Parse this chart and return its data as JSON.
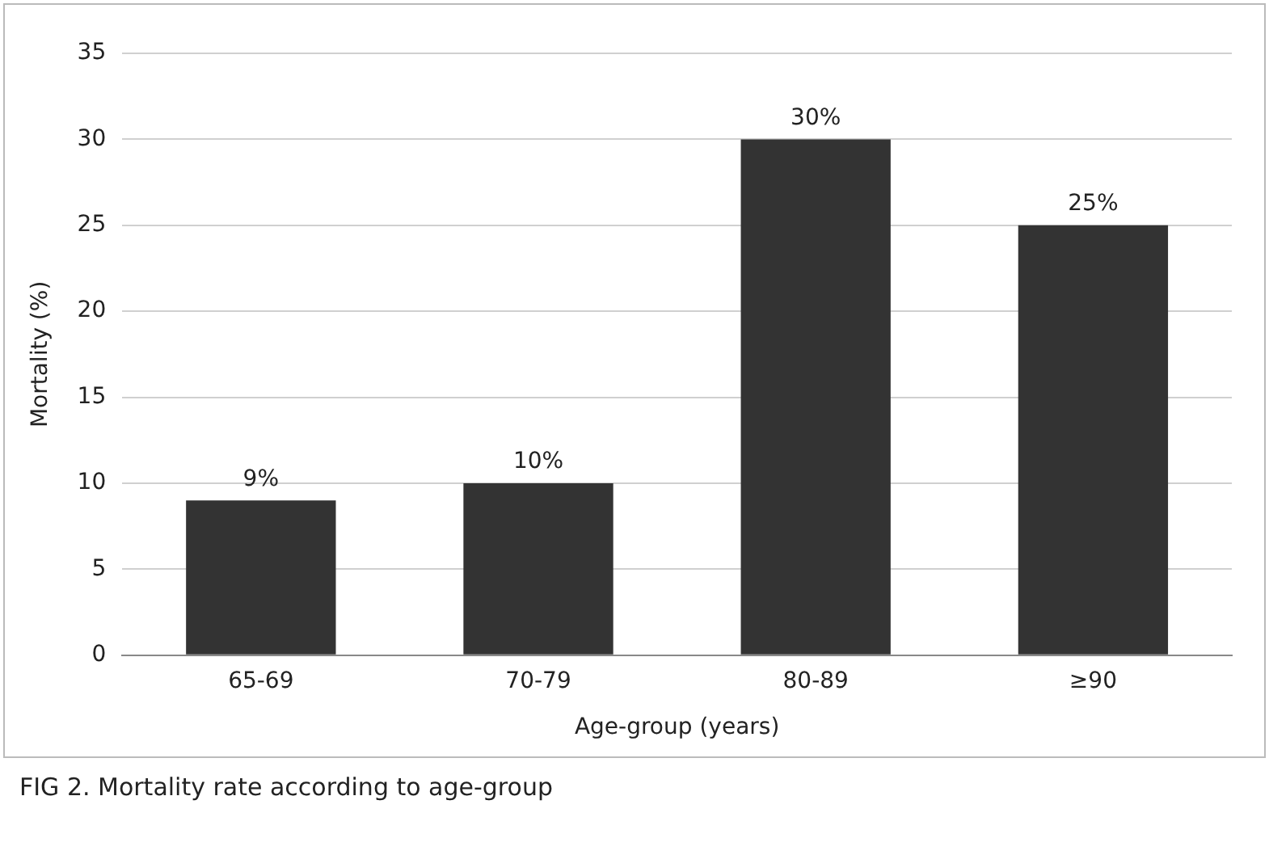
{
  "chart_data": {
    "type": "bar",
    "xlabel": "Age-group (years)",
    "ylabel": "Mortality (%)",
    "categories": [
      "65-69",
      "70-79",
      "80-89",
      "≥90"
    ],
    "values": [
      9,
      10,
      30,
      25
    ],
    "value_labels": [
      "9%",
      "10%",
      "30%",
      "25%"
    ],
    "color": "#333333",
    "ylim": [
      0,
      35
    ],
    "yticks": [
      0,
      5,
      10,
      15,
      20,
      25,
      30,
      35
    ],
    "grid": "y",
    "legend": false,
    "annotations": [
      "FIG 2.  Mortality rate according to age-group"
    ]
  }
}
